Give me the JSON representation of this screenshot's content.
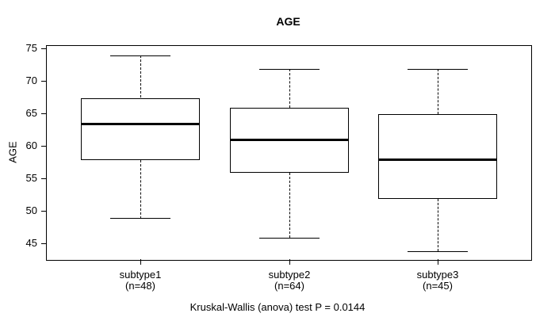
{
  "chart_data": {
    "type": "boxplot",
    "title": "AGE",
    "ylabel": "AGE",
    "xlabel": "",
    "caption": "Kruskal-Wallis (anova) test P = 0.0144",
    "ylim": [
      42.6,
      75.5
    ],
    "yticks": [
      45,
      50,
      55,
      60,
      65,
      70,
      75
    ],
    "grid": "off",
    "legend": "none",
    "groups": [
      {
        "label": "subtype1",
        "sublabel": "(n=48)",
        "n": 48,
        "min": 49,
        "q1": 58,
        "median": 63.5,
        "q3": 67.5,
        "max": 74
      },
      {
        "label": "subtype2",
        "sublabel": "(n=64)",
        "n": 64,
        "min": 46,
        "q1": 56,
        "median": 61,
        "q3": 66,
        "max": 72
      },
      {
        "label": "subtype3",
        "sublabel": "(n=45)",
        "n": 45,
        "min": 44,
        "q1": 52,
        "median": 58,
        "q3": 65,
        "max": 72
      }
    ],
    "colors": {
      "line": "#000000",
      "median": "#000000",
      "box_fill": "#ffffff",
      "background": "#ffffff",
      "text": "#000000"
    }
  }
}
